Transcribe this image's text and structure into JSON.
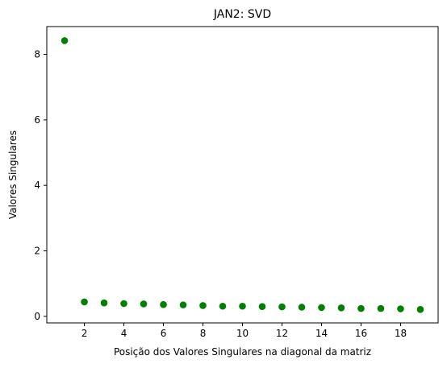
{
  "chart_data": {
    "type": "scatter",
    "title": "JAN2: SVD",
    "xlabel": "Posição dos Valores Singulares na diagonal da matriz",
    "ylabel": "Valores Singulares",
    "xlim": [
      0.1,
      19.9
    ],
    "ylim": [
      -0.2,
      8.85
    ],
    "xticks": [
      2,
      4,
      6,
      8,
      10,
      12,
      14,
      16,
      18
    ],
    "yticks": [
      0,
      2,
      4,
      6,
      8
    ],
    "grid": false,
    "marker_color": "#008000",
    "series": [
      {
        "x": [
          1,
          2,
          3,
          4,
          5,
          6,
          7,
          8,
          9,
          10,
          11,
          12,
          13,
          14,
          15,
          16,
          17,
          18,
          19
        ],
        "y": [
          8.42,
          0.44,
          0.41,
          0.39,
          0.38,
          0.36,
          0.35,
          0.33,
          0.31,
          0.31,
          0.3,
          0.29,
          0.28,
          0.27,
          0.26,
          0.24,
          0.24,
          0.23,
          0.21
        ]
      }
    ]
  }
}
